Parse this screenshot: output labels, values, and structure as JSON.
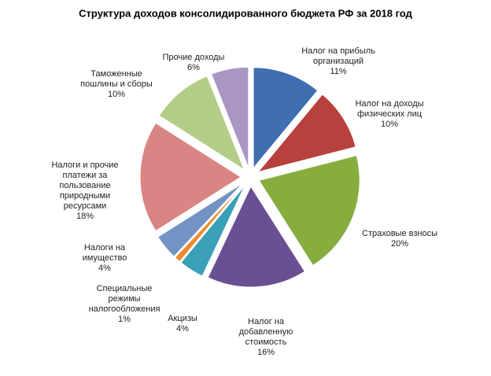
{
  "chart_data": {
    "type": "pie",
    "title": "Структура доходов консолидированного  бюджета РФ за 2018 год",
    "categories": [
      "Налог на прибыль\nорганизаций",
      "Налог на доходы\nфизических лиц",
      "Страховые взносы",
      "Налог на\nдобавленную\nстоимость",
      "Акцизы",
      "Специальные\nрежимы\nналогообложения",
      "Налоги на\nимущество",
      "Налоги и прочие\nплатежи за\nпользование\nприродными\nресурсами",
      "Таможенные\nпошлины и сборы",
      "Прочие доходы"
    ],
    "values": [
      11,
      10,
      20,
      16,
      4,
      1,
      4,
      18,
      10,
      6
    ],
    "value_labels": [
      "11%",
      "10%",
      "20%",
      "16%",
      "4%",
      "1%",
      "4%",
      "18%",
      "10%",
      "6%"
    ],
    "colors": [
      "#3f6fb0",
      "#b8403d",
      "#86ad3e",
      "#6a4f93",
      "#3aa0b8",
      "#ef8a2e",
      "#7393c4",
      "#d98583",
      "#b3cd86",
      "#a996c4"
    ]
  }
}
